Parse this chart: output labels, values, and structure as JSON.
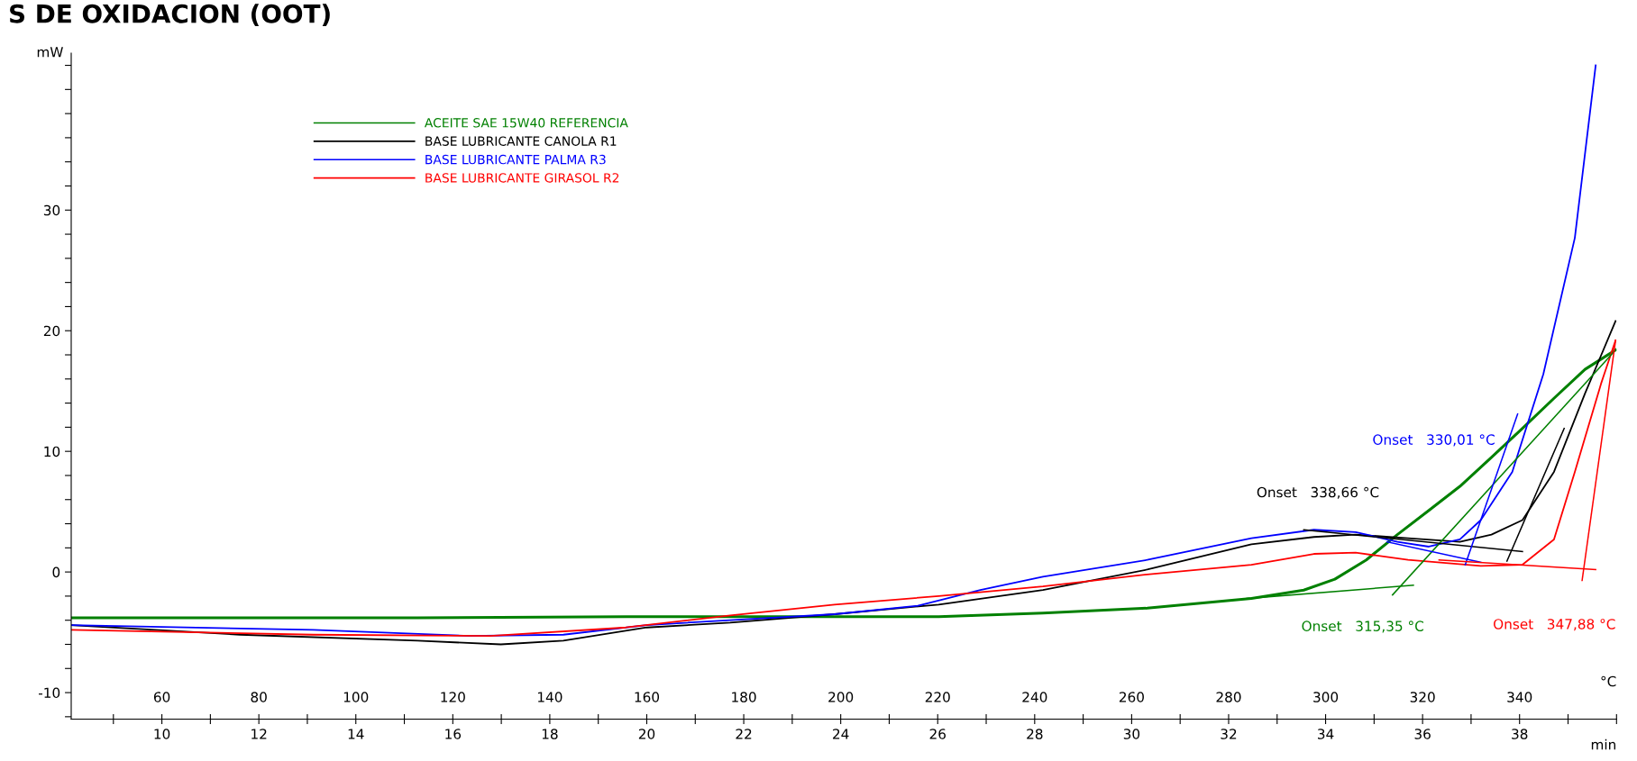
{
  "chart_data": {
    "type": "line",
    "title": "S DE OXIDACION (OOT)",
    "ylabel": "mW",
    "xlabel": "min",
    "x2label": "°C",
    "xlim": [
      8.13,
      40
    ],
    "ylim": [
      -12.2,
      43
    ],
    "xticks": [
      {
        "value": 9,
        "label": null
      },
      10,
      {
        "value": 11,
        "label": null
      },
      12,
      {
        "value": 13,
        "label": null
      },
      14,
      {
        "value": 15,
        "label": null
      },
      16,
      {
        "value": 17,
        "label": null
      },
      18,
      {
        "value": 19,
        "label": null
      },
      20,
      {
        "value": 21,
        "label": null
      },
      22,
      {
        "value": 23,
        "label": null
      },
      24,
      {
        "value": 25,
        "label": null
      },
      26,
      {
        "value": 27,
        "label": null
      },
      28,
      {
        "value": 29,
        "label": null
      },
      30,
      {
        "value": 31,
        "label": null
      },
      32,
      {
        "value": 33,
        "label": null
      },
      34,
      {
        "value": 35,
        "label": null
      },
      36,
      {
        "value": 37,
        "label": null
      },
      38,
      {
        "value": 39,
        "label": null
      },
      {
        "value": 40,
        "label": null
      }
    ],
    "x2lim": [
      41.3,
      360
    ],
    "x2ticks": [
      60,
      80,
      100,
      120,
      140,
      160,
      180,
      200,
      220,
      240,
      260,
      280,
      300,
      320,
      340
    ],
    "yticks": [
      {
        "value": -12,
        "label": null
      },
      -10,
      {
        "value": -8,
        "label": null
      },
      {
        "value": -6,
        "label": null
      },
      {
        "value": -4,
        "label": null
      },
      {
        "value": -2,
        "label": null
      },
      0,
      {
        "value": 2,
        "label": null
      },
      {
        "value": 4,
        "label": null
      },
      {
        "value": 6,
        "label": null
      },
      {
        "value": 8,
        "label": null
      },
      10,
      {
        "value": 12,
        "label": null
      },
      {
        "value": 14,
        "label": null
      },
      {
        "value": 16,
        "label": null
      },
      {
        "value": 18,
        "label": null
      },
      20,
      {
        "value": 22,
        "label": null
      },
      {
        "value": 24,
        "label": null
      },
      {
        "value": 26,
        "label": null
      },
      {
        "value": 28,
        "label": null
      },
      30,
      {
        "value": 32,
        "label": null
      },
      {
        "value": 34,
        "label": null
      },
      {
        "value": 36,
        "label": null
      },
      {
        "value": 38,
        "label": null
      },
      {
        "value": 40,
        "label": null
      },
      {
        "value": 42,
        "label": null
      }
    ],
    "grid": false,
    "legend": "top left",
    "marker": "none",
    "line_style": "solid",
    "series": [
      {
        "name": "ACEITE SAE 15W40 REFERENCIA",
        "color": "#008000",
        "x": [
          8.13,
          10.97,
          15.27,
          19.57,
          23.87,
          26.02,
          28.17,
          30.32,
          32.47,
          33.55,
          34.19,
          34.84,
          35.48,
          36.13,
          36.77,
          37.42,
          38.06,
          38.71,
          39.35,
          39.98
        ],
        "values": [
          -3.8,
          -3.8,
          -3.8,
          -3.7,
          -3.7,
          -3.7,
          -3.4,
          -3.0,
          -2.2,
          -1.5,
          -0.6,
          1.0,
          3.1,
          5.1,
          7.1,
          9.5,
          11.9,
          14.4,
          16.8,
          18.4
        ]
      },
      {
        "name": "BASE LUBRICANTE CANOLA R1",
        "color": "#000000",
        "x": [
          8.13,
          11.61,
          15.27,
          16.99,
          18.28,
          20.0,
          21.72,
          23.87,
          26.02,
          28.17,
          30.32,
          32.47,
          33.76,
          34.62,
          35.7,
          36.77,
          37.42,
          38.06,
          38.71,
          39.35,
          39.98
        ],
        "values": [
          -4.4,
          -5.2,
          -5.7,
          -6.0,
          -5.7,
          -4.6,
          -4.2,
          -3.5,
          -2.7,
          -1.5,
          0.2,
          2.3,
          2.9,
          3.1,
          2.8,
          2.5,
          3.1,
          4.3,
          8.3,
          14.8,
          20.8
        ]
      },
      {
        "name": "BASE LUBRICANTE PALMA R3",
        "color": "#0000ff",
        "x": [
          8.13,
          13.12,
          16.34,
          18.28,
          20.0,
          21.72,
          23.87,
          25.59,
          26.88,
          28.17,
          30.32,
          32.47,
          33.76,
          34.62,
          35.48,
          36.13,
          36.77,
          37.2,
          37.85,
          38.49,
          39.14,
          39.57
        ],
        "values": [
          -4.4,
          -4.8,
          -5.3,
          -5.2,
          -4.4,
          -4.0,
          -3.5,
          -2.8,
          -1.5,
          -0.4,
          1.0,
          2.8,
          3.5,
          3.3,
          2.5,
          2.1,
          2.7,
          4.3,
          8.3,
          16.4,
          27.7,
          42
        ]
      },
      {
        "name": "BASE LUBRICANTE GIRASOL R2",
        "color": "#ff0000",
        "x": [
          8.13,
          13.12,
          16.77,
          19.57,
          21.72,
          23.87,
          26.02,
          28.17,
          30.32,
          32.47,
          33.76,
          34.62,
          35.7,
          37.2,
          38.06,
          38.71,
          39.14,
          39.68,
          39.98
        ],
        "values": [
          -4.8,
          -5.2,
          -5.3,
          -4.6,
          -3.6,
          -2.7,
          -2.0,
          -1.2,
          -0.2,
          0.6,
          1.5,
          1.6,
          1.0,
          0.5,
          0.6,
          2.7,
          8.3,
          15.6,
          19.2
        ]
      },
      {
        "color": "#008000",
        "x": [
          32.37,
          35.81
        ],
        "values": [
          -2.2,
          -1.1
        ]
      },
      {
        "color": "#008000",
        "x": [
          35.38,
          39.98
        ],
        "values": [
          -1.9,
          18.4
        ]
      },
      {
        "color": "#000000",
        "x": [
          33.55,
          38.06
        ],
        "values": [
          3.5,
          1.7
        ]
      },
      {
        "color": "#000000",
        "x": [
          37.74,
          38.92
        ],
        "values": [
          0.9,
          11.9
        ]
      },
      {
        "color": "#0000ff",
        "x": [
          35.27,
          37.2
        ],
        "values": [
          2.5,
          0.8
        ]
      },
      {
        "color": "#0000ff",
        "x": [
          36.88,
          37.96
        ],
        "values": [
          0.6,
          13.1
        ]
      },
      {
        "color": "#ff0000",
        "x": [
          36.34,
          39.57
        ],
        "values": [
          1.0,
          0.2
        ]
      },
      {
        "color": "#ff0000",
        "x": [
          39.29,
          39.98
        ],
        "values": [
          -0.7,
          19.2
        ]
      }
    ],
    "annotations": [
      "Onset   315,35 °C",
      "Onset   338,66 °C",
      "Onset   330,01 °C",
      "Onset   347,88 °C"
    ]
  }
}
